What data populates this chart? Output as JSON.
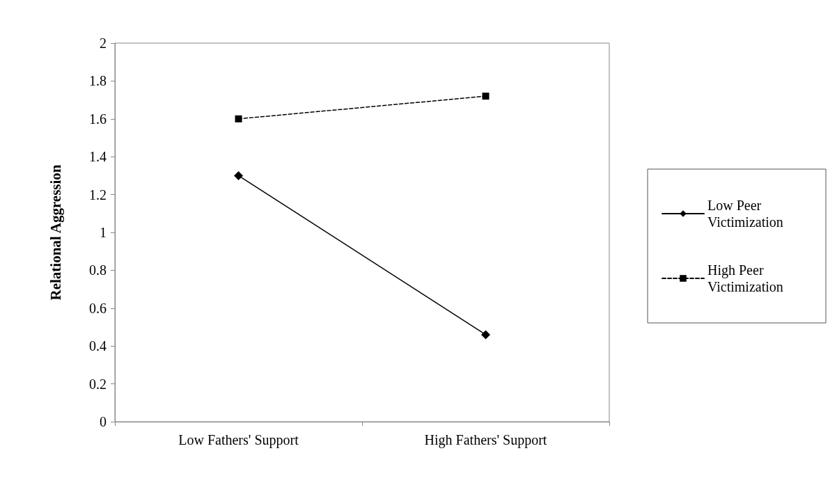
{
  "chart_data": {
    "type": "line",
    "ylabel": "Relational Aggression",
    "categories": [
      "Low Fathers' Support",
      "High Fathers' Support"
    ],
    "series": [
      {
        "name": "Low Peer Victimization",
        "color": "#000000",
        "marker": "diamond",
        "line_style": "solid",
        "values": [
          1.3,
          0.46
        ]
      },
      {
        "name": "High Peer Victimization",
        "color": "#000000",
        "marker": "square",
        "line_style": "dashed",
        "values": [
          1.6,
          1.72
        ]
      }
    ],
    "ylim": [
      0,
      2
    ],
    "yticks": [
      0,
      0.2,
      0.4,
      0.6,
      0.8,
      1,
      1.2,
      1.4,
      1.6,
      1.8,
      2
    ],
    "grid": false,
    "legend": "right"
  }
}
